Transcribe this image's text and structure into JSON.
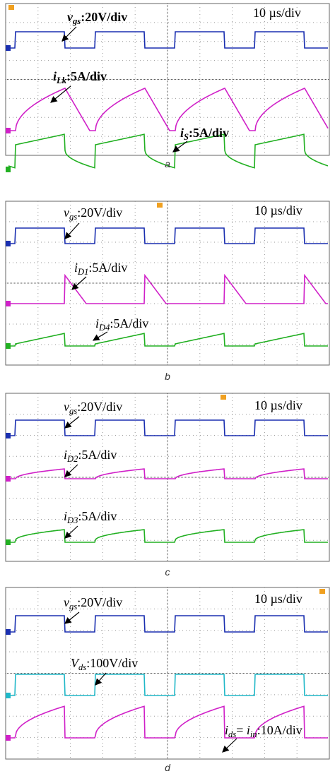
{
  "panels": [
    {
      "caption": "a",
      "timebase": "10 µs/div",
      "labels": [
        {
          "segments": [
            {
              "text": "v",
              "italic": true
            },
            {
              "text": "gs",
              "italic": true,
              "sub": true
            },
            {
              "text": ":20V/div"
            }
          ]
        },
        {
          "segments": [
            {
              "text": "i",
              "italic": true
            },
            {
              "text": "Lk",
              "italic": true,
              "sub": true
            },
            {
              "text": ":5A/div"
            }
          ]
        },
        {
          "segments": [
            {
              "text": "i",
              "italic": true
            },
            {
              "text": "S",
              "italic": true,
              "sub": true
            },
            {
              "text": ":5A/div"
            }
          ]
        }
      ]
    },
    {
      "caption": "b",
      "timebase": "10 µs/div",
      "labels": [
        {
          "segments": [
            {
              "text": "v",
              "italic": true
            },
            {
              "text": "gs",
              "italic": true,
              "sub": true
            },
            {
              "text": ":20V/div"
            }
          ]
        },
        {
          "segments": [
            {
              "text": "i",
              "italic": true
            },
            {
              "text": "D1",
              "italic": true,
              "sub": true
            },
            {
              "text": ":5A/div"
            }
          ]
        },
        {
          "segments": [
            {
              "text": "i",
              "italic": true
            },
            {
              "text": "D4",
              "italic": true,
              "sub": true
            },
            {
              "text": ":5A/div"
            }
          ]
        }
      ]
    },
    {
      "caption": "c",
      "timebase": "10 µs/div",
      "labels": [
        {
          "segments": [
            {
              "text": "v",
              "italic": true
            },
            {
              "text": "gs",
              "italic": true,
              "sub": true
            },
            {
              "text": ":20V/div"
            }
          ]
        },
        {
          "segments": [
            {
              "text": "i",
              "italic": true
            },
            {
              "text": "D2",
              "italic": true,
              "sub": true
            },
            {
              "text": ":5A/div"
            }
          ]
        },
        {
          "segments": [
            {
              "text": "i",
              "italic": true
            },
            {
              "text": "D3",
              "italic": true,
              "sub": true
            },
            {
              "text": ":5A/div"
            }
          ]
        }
      ]
    },
    {
      "caption": "d",
      "timebase": "10 µs/div",
      "labels": [
        {
          "segments": [
            {
              "text": "v",
              "italic": true
            },
            {
              "text": "gs",
              "italic": true,
              "sub": true
            },
            {
              "text": ":20V/div"
            }
          ]
        },
        {
          "segments": [
            {
              "text": "V",
              "italic": true
            },
            {
              "text": "ds",
              "italic": true,
              "sub": true
            },
            {
              "text": ":100V/div"
            }
          ]
        },
        {
          "segments": [
            {
              "text": "i",
              "italic": true
            },
            {
              "text": "ds",
              "italic": true,
              "sub": true
            },
            {
              "text": "= "
            },
            {
              "text": "i",
              "italic": true
            },
            {
              "text": "in",
              "italic": true,
              "sub": true
            },
            {
              "text": ":10A/div"
            }
          ]
        }
      ]
    }
  ]
}
